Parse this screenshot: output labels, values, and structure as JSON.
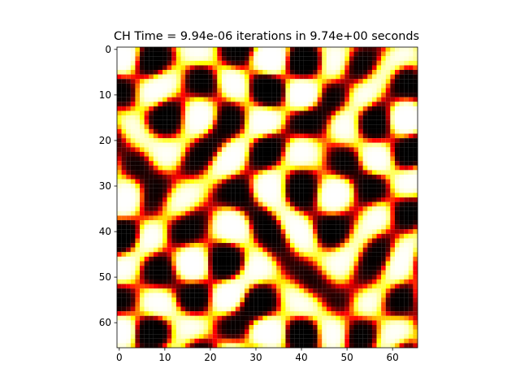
{
  "chart_data": {
    "type": "heatmap",
    "title": "CH Time = 9.94e-06 iterations in 9.74e+00 seconds",
    "xlabel": "",
    "ylabel": "",
    "colormap": "hot",
    "grid": false,
    "colorbar": false,
    "grid_size": [
      66,
      66
    ],
    "xlim": [
      -0.5,
      65.5
    ],
    "ylim": [
      65.5,
      -0.5
    ],
    "x_ticks": [
      "0",
      "10",
      "20",
      "30",
      "40",
      "50",
      "60"
    ],
    "y_ticks": [
      "0",
      "10",
      "20",
      "30",
      "40",
      "50",
      "60"
    ],
    "pattern": "spinodal decomposition labyrinth (Cahn-Hilliard phase field)"
  }
}
